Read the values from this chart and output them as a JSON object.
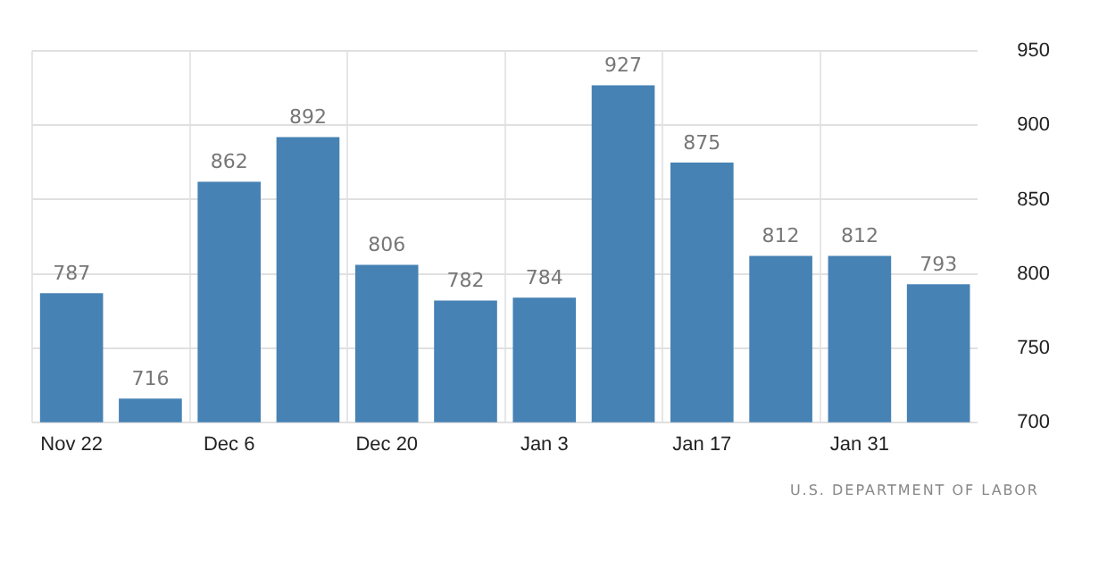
{
  "chart_data": {
    "type": "bar",
    "categories": [
      "Nov 22",
      null,
      "Dec 6",
      null,
      "Dec 20",
      null,
      "Jan 3",
      null,
      "Jan 17",
      null,
      "Jan 31",
      null
    ],
    "values": [
      787,
      716,
      862,
      892,
      806,
      782,
      784,
      927,
      875,
      812,
      812,
      793
    ],
    "color": "#4682b4",
    "ylim": [
      700,
      950
    ],
    "yticks": [
      700,
      750,
      800,
      850,
      900,
      950
    ],
    "grid": true,
    "data_labels": true,
    "annotations": [
      "U.S. DEPARTMENT OF LABOR"
    ]
  }
}
